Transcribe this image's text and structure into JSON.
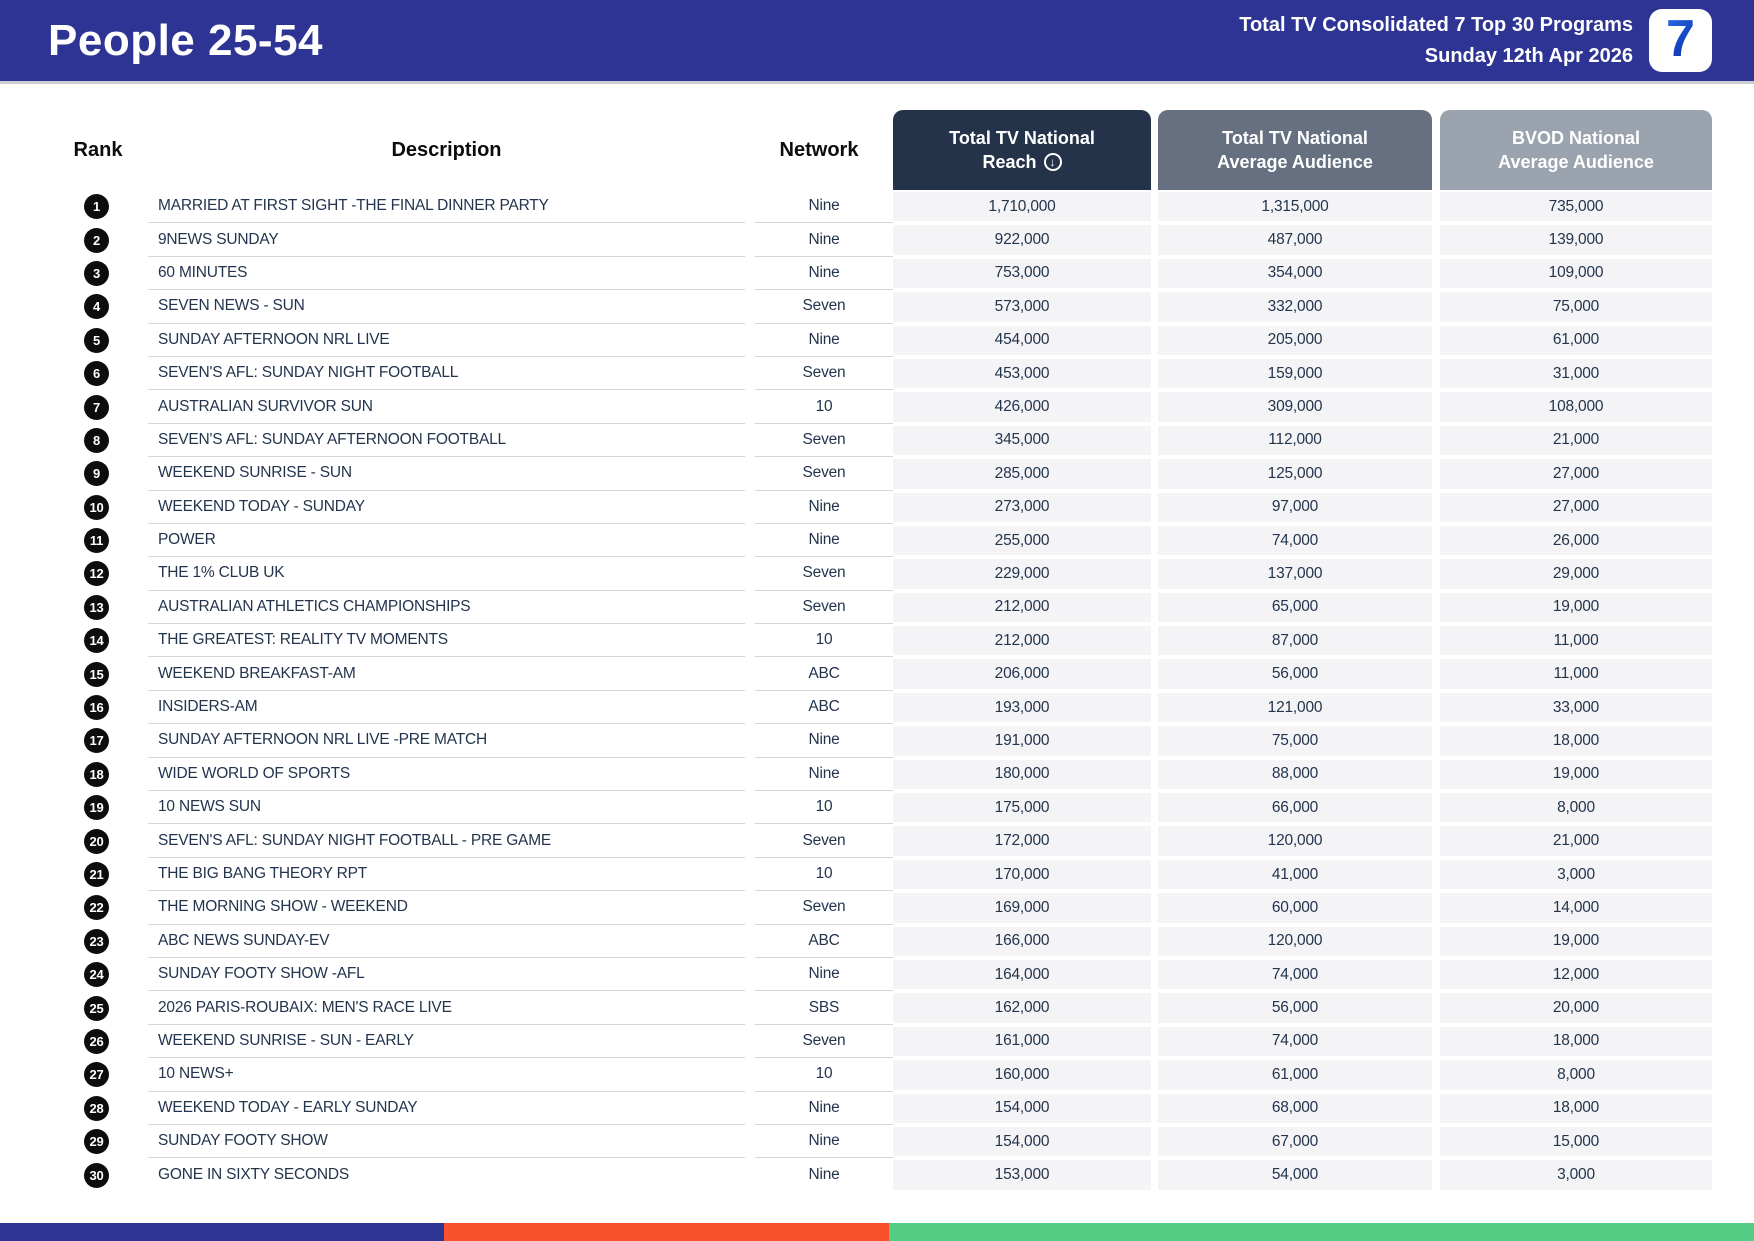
{
  "header": {
    "title": "People 25-54",
    "subtitle_line1": "Total TV Consolidated 7 Top 30 Programs",
    "subtitle_line2": "Sunday 12th Apr 2026",
    "logo_glyph": "7",
    "band_color": "#2e3493"
  },
  "table": {
    "columns": {
      "rank": "Rank",
      "description": "Description",
      "network": "Network",
      "reach_line1": "Total TV National",
      "reach_line2": "Reach",
      "avg_line1": "Total TV National",
      "avg_line2": "Average Audience",
      "bvod_line1": "BVOD National",
      "bvod_line2": "Average Audience"
    },
    "sort_icon_glyph": "↓",
    "header_colors": {
      "reach": "#243349",
      "avg": "#667081",
      "bvod": "#9aa3ae"
    }
  },
  "footer_bar": {
    "segments": [
      {
        "color": "#2e3493",
        "width_percent": 25.3
      },
      {
        "color": "#f9512d",
        "width_percent": 25.4
      },
      {
        "color": "#53cd84",
        "width_percent": 49.3
      }
    ]
  },
  "chart_data": {
    "type": "table",
    "title": "People 25-54 — Total TV Consolidated 7 Top 30 Programs — Sunday 12th Apr 2026",
    "columns": [
      "Rank",
      "Description",
      "Network",
      "Total TV National Reach",
      "Total TV National Average Audience",
      "BVOD National Average Audience"
    ],
    "sorted_by": "Total TV National Reach (descending)",
    "rows": [
      {
        "rank": "1",
        "description": "MARRIED AT FIRST SIGHT -THE FINAL DINNER PARTY",
        "network": "Nine",
        "reach": "1,710,000",
        "avg_audience": "1,315,000",
        "bvod": "735,000"
      },
      {
        "rank": "2",
        "description": "9NEWS SUNDAY",
        "network": "Nine",
        "reach": "922,000",
        "avg_audience": "487,000",
        "bvod": "139,000"
      },
      {
        "rank": "3",
        "description": "60 MINUTES",
        "network": "Nine",
        "reach": "753,000",
        "avg_audience": "354,000",
        "bvod": "109,000"
      },
      {
        "rank": "4",
        "description": "SEVEN NEWS - SUN",
        "network": "Seven",
        "reach": "573,000",
        "avg_audience": "332,000",
        "bvod": "75,000"
      },
      {
        "rank": "5",
        "description": "SUNDAY AFTERNOON NRL LIVE",
        "network": "Nine",
        "reach": "454,000",
        "avg_audience": "205,000",
        "bvod": "61,000"
      },
      {
        "rank": "6",
        "description": "SEVEN'S AFL: SUNDAY NIGHT FOOTBALL",
        "network": "Seven",
        "reach": "453,000",
        "avg_audience": "159,000",
        "bvod": "31,000"
      },
      {
        "rank": "7",
        "description": "AUSTRALIAN SURVIVOR SUN",
        "network": "10",
        "reach": "426,000",
        "avg_audience": "309,000",
        "bvod": "108,000"
      },
      {
        "rank": "8",
        "description": "SEVEN'S AFL: SUNDAY AFTERNOON FOOTBALL",
        "network": "Seven",
        "reach": "345,000",
        "avg_audience": "112,000",
        "bvod": "21,000"
      },
      {
        "rank": "9",
        "description": "WEEKEND SUNRISE - SUN",
        "network": "Seven",
        "reach": "285,000",
        "avg_audience": "125,000",
        "bvod": "27,000"
      },
      {
        "rank": "10",
        "description": "WEEKEND TODAY - SUNDAY",
        "network": "Nine",
        "reach": "273,000",
        "avg_audience": "97,000",
        "bvod": "27,000"
      },
      {
        "rank": "11",
        "description": "POWER",
        "network": "Nine",
        "reach": "255,000",
        "avg_audience": "74,000",
        "bvod": "26,000"
      },
      {
        "rank": "12",
        "description": "THE 1% CLUB UK",
        "network": "Seven",
        "reach": "229,000",
        "avg_audience": "137,000",
        "bvod": "29,000"
      },
      {
        "rank": "13",
        "description": "AUSTRALIAN ATHLETICS CHAMPIONSHIPS",
        "network": "Seven",
        "reach": "212,000",
        "avg_audience": "65,000",
        "bvod": "19,000"
      },
      {
        "rank": "14",
        "description": "THE GREATEST: REALITY TV MOMENTS",
        "network": "10",
        "reach": "212,000",
        "avg_audience": "87,000",
        "bvod": "11,000"
      },
      {
        "rank": "15",
        "description": "WEEKEND BREAKFAST-AM",
        "network": "ABC",
        "reach": "206,000",
        "avg_audience": "56,000",
        "bvod": "11,000"
      },
      {
        "rank": "16",
        "description": "INSIDERS-AM",
        "network": "ABC",
        "reach": "193,000",
        "avg_audience": "121,000",
        "bvod": "33,000"
      },
      {
        "rank": "17",
        "description": "SUNDAY AFTERNOON NRL LIVE -PRE MATCH",
        "network": "Nine",
        "reach": "191,000",
        "avg_audience": "75,000",
        "bvod": "18,000"
      },
      {
        "rank": "18",
        "description": "WIDE WORLD OF SPORTS",
        "network": "Nine",
        "reach": "180,000",
        "avg_audience": "88,000",
        "bvod": "19,000"
      },
      {
        "rank": "19",
        "description": "10 NEWS SUN",
        "network": "10",
        "reach": "175,000",
        "avg_audience": "66,000",
        "bvod": "8,000"
      },
      {
        "rank": "20",
        "description": "SEVEN'S AFL: SUNDAY NIGHT FOOTBALL - PRE GAME",
        "network": "Seven",
        "reach": "172,000",
        "avg_audience": "120,000",
        "bvod": "21,000"
      },
      {
        "rank": "21",
        "description": "THE BIG BANG THEORY RPT",
        "network": "10",
        "reach": "170,000",
        "avg_audience": "41,000",
        "bvod": "3,000"
      },
      {
        "rank": "22",
        "description": "THE MORNING SHOW - WEEKEND",
        "network": "Seven",
        "reach": "169,000",
        "avg_audience": "60,000",
        "bvod": "14,000"
      },
      {
        "rank": "23",
        "description": "ABC NEWS SUNDAY-EV",
        "network": "ABC",
        "reach": "166,000",
        "avg_audience": "120,000",
        "bvod": "19,000"
      },
      {
        "rank": "24",
        "description": "SUNDAY FOOTY SHOW -AFL",
        "network": "Nine",
        "reach": "164,000",
        "avg_audience": "74,000",
        "bvod": "12,000"
      },
      {
        "rank": "25",
        "description": "2026 PARIS-ROUBAIX: MEN'S RACE LIVE",
        "network": "SBS",
        "reach": "162,000",
        "avg_audience": "56,000",
        "bvod": "20,000"
      },
      {
        "rank": "26",
        "description": "WEEKEND SUNRISE - SUN - EARLY",
        "network": "Seven",
        "reach": "161,000",
        "avg_audience": "74,000",
        "bvod": "18,000"
      },
      {
        "rank": "27",
        "description": "10 NEWS+",
        "network": "10",
        "reach": "160,000",
        "avg_audience": "61,000",
        "bvod": "8,000"
      },
      {
        "rank": "28",
        "description": "WEEKEND TODAY - EARLY SUNDAY",
        "network": "Nine",
        "reach": "154,000",
        "avg_audience": "68,000",
        "bvod": "18,000"
      },
      {
        "rank": "29",
        "description": "SUNDAY FOOTY SHOW",
        "network": "Nine",
        "reach": "154,000",
        "avg_audience": "67,000",
        "bvod": "15,000"
      },
      {
        "rank": "30",
        "description": "GONE IN SIXTY SECONDS",
        "network": "Nine",
        "reach": "153,000",
        "avg_audience": "54,000",
        "bvod": "3,000"
      }
    ]
  }
}
